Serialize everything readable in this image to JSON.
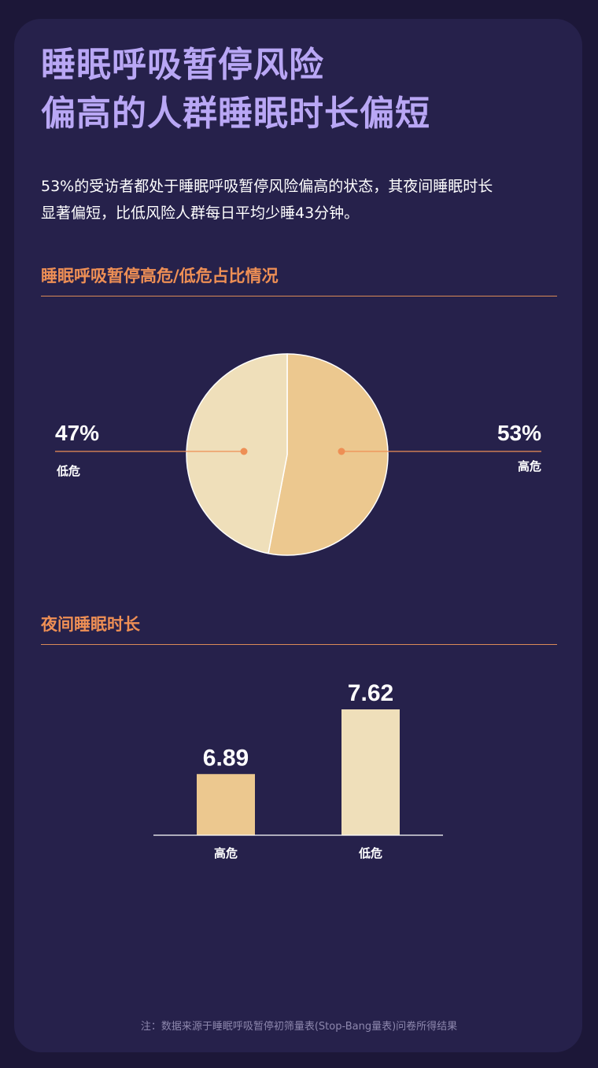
{
  "title": {
    "line1": "睡眠呼吸暂停风险",
    "line2": "偏高的人群睡眠时长偏短"
  },
  "description": {
    "line1": "53%的受访者都处于睡眠呼吸暂停风险偏高的状态，其夜间睡眠时长",
    "line2": "显著偏短，比低风险人群每日平均少睡43分钟。"
  },
  "pie_section": {
    "title": "睡眠呼吸暂停高危/低危占比情况"
  },
  "bar_section": {
    "title": "夜间睡眠时长"
  },
  "footnote": "注：数据来源于睡眠呼吸暂停初筛量表(Stop-Bang量表)问卷所得结果",
  "colors": {
    "high_risk": "#ecc88f",
    "low_risk": "#efdfba",
    "accent": "#ee8f55",
    "title": "#b9a7f5"
  },
  "chart_data": [
    {
      "type": "pie",
      "title": "睡眠呼吸暂停高危/低危占比情况",
      "slices": [
        {
          "label": "高危",
          "value": 53,
          "value_label": "53%"
        },
        {
          "label": "低危",
          "value": 47,
          "value_label": "47%"
        }
      ]
    },
    {
      "type": "bar",
      "title": "夜间睡眠时长",
      "categories": [
        "高危",
        "低危"
      ],
      "values": [
        6.89,
        7.62
      ],
      "value_labels": [
        "6.89",
        "7.62"
      ]
    }
  ]
}
